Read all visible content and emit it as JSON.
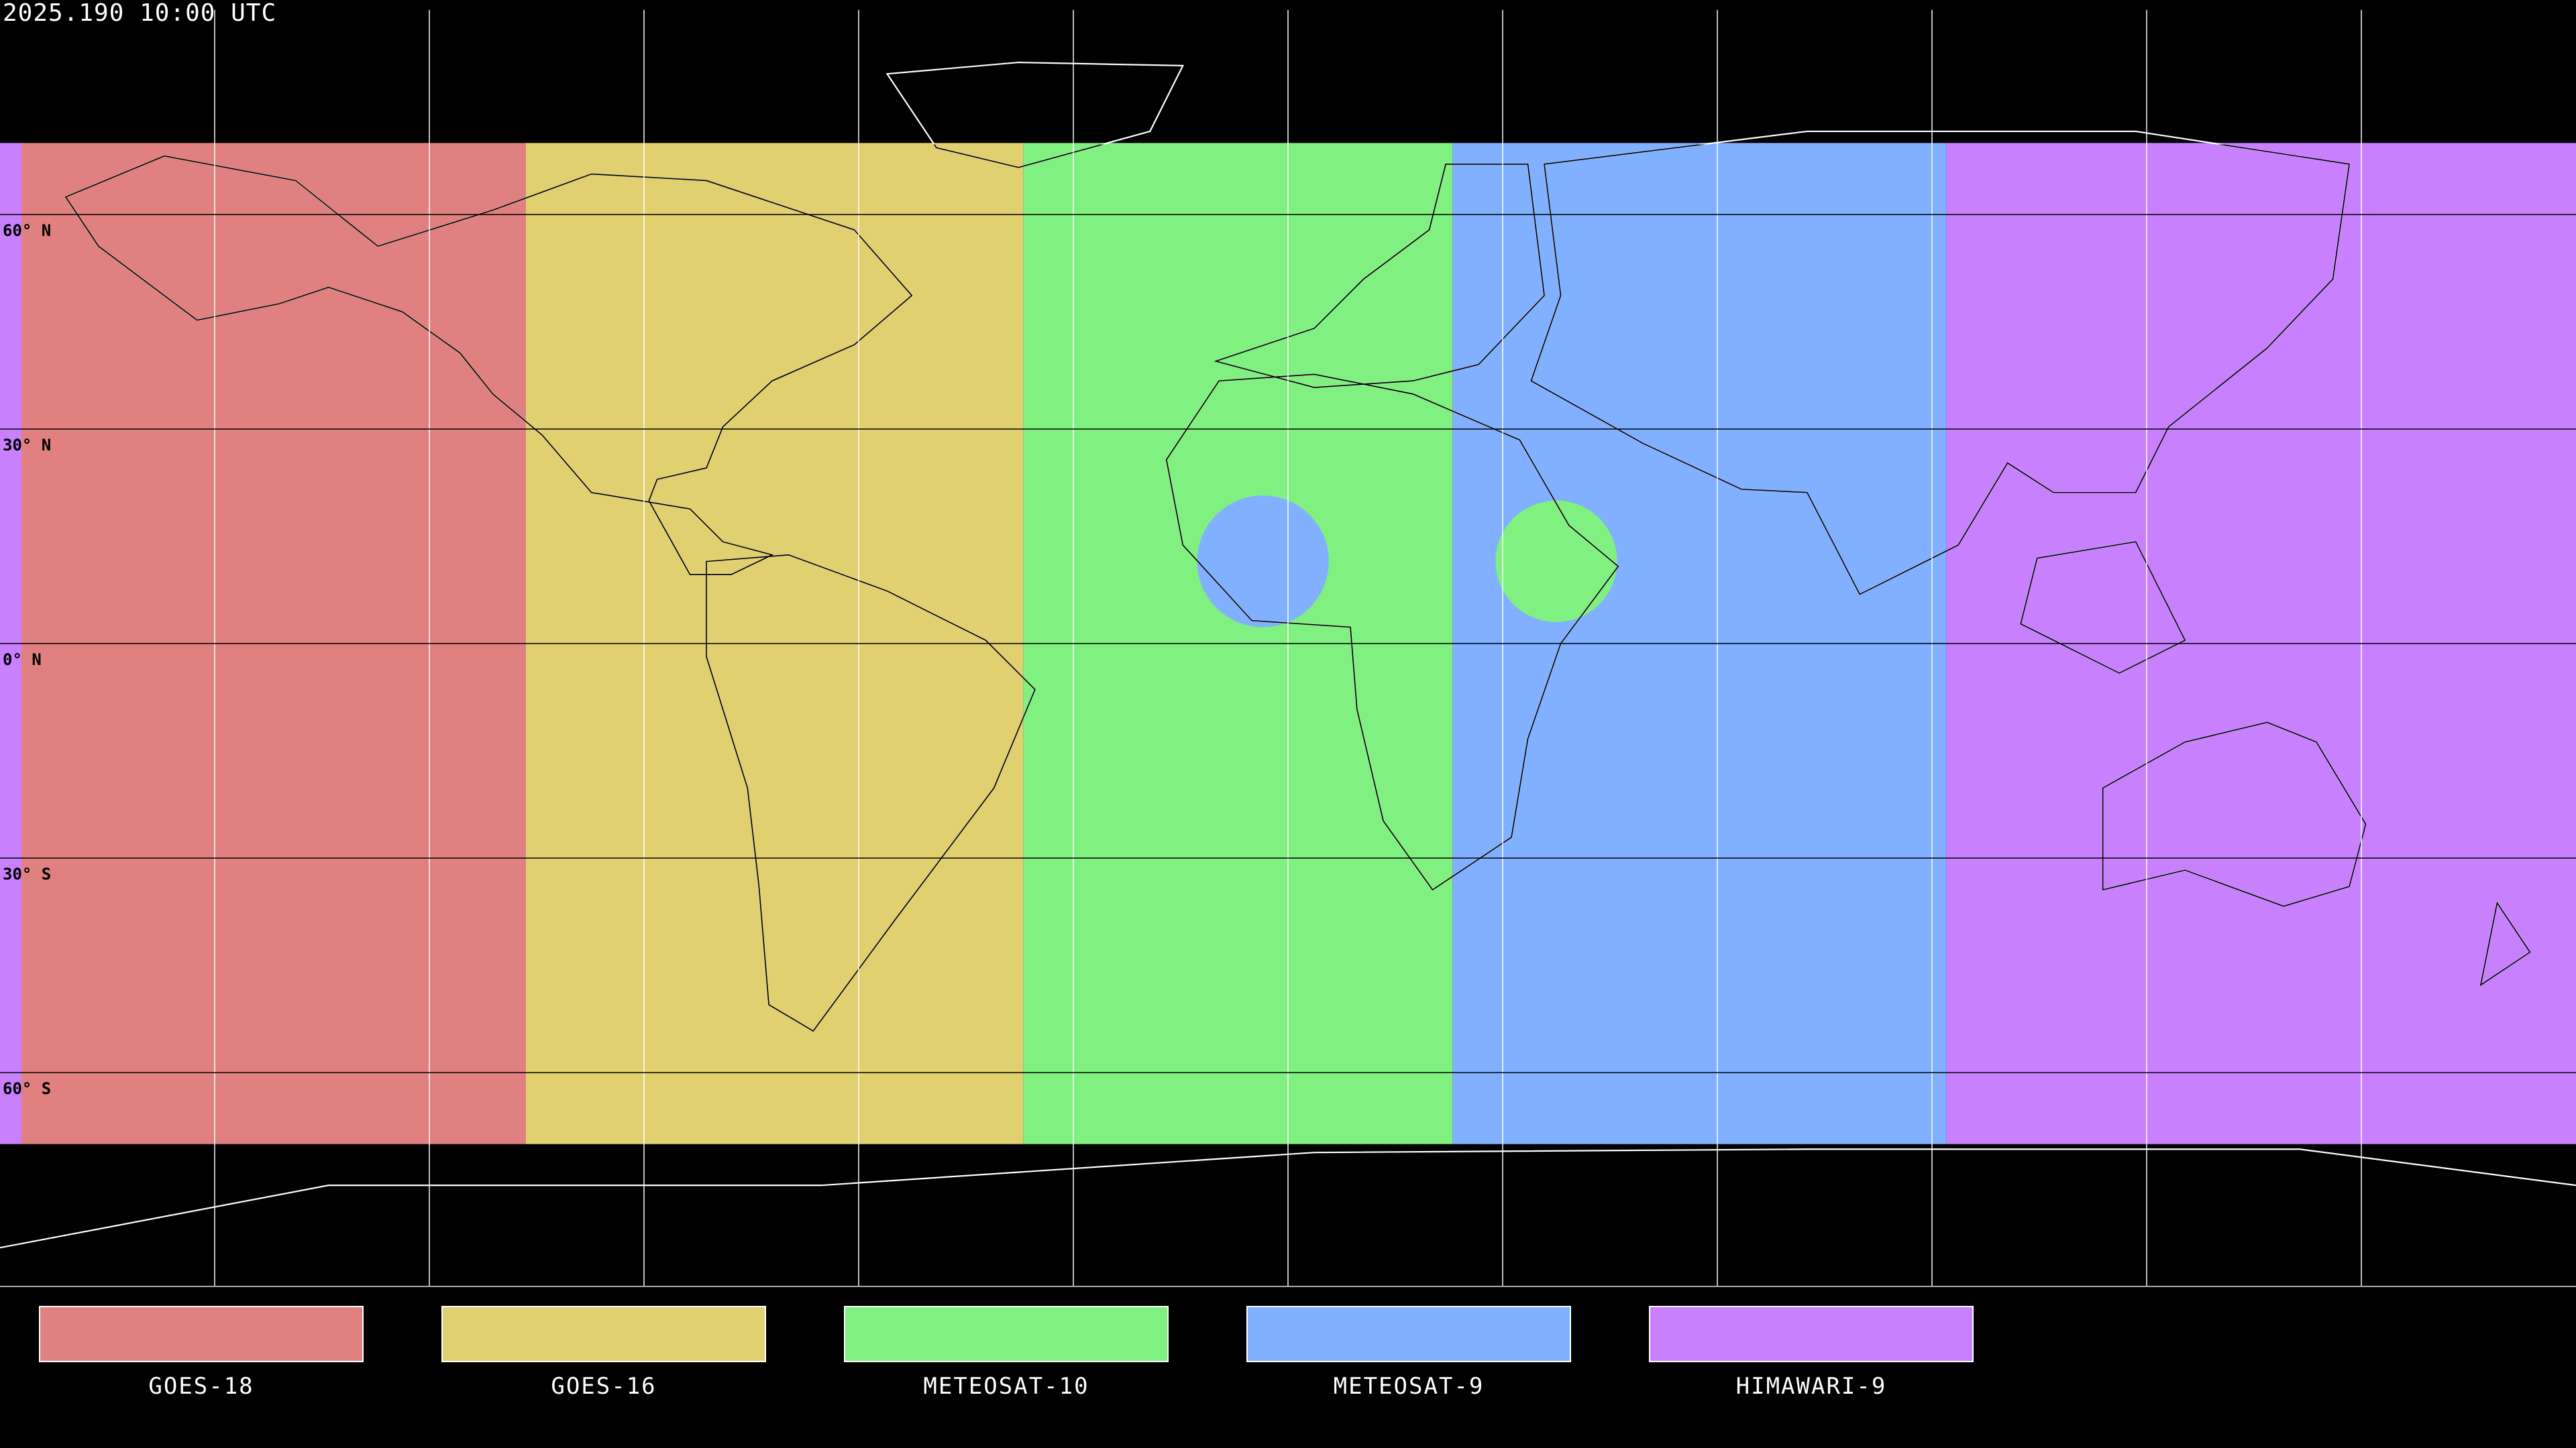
{
  "title": "2025.190 10:00 UTC",
  "map": {
    "projection": "equirectangular",
    "lon_range": [
      -180,
      180
    ],
    "lat_range": [
      -90,
      90
    ],
    "grid_spacing_deg": 30,
    "background": "#000000",
    "coverage_lat": [
      -70,
      70
    ],
    "lat_labels": [
      {
        "lat": 60,
        "text": "60° N"
      },
      {
        "lat": 30,
        "text": "30° N"
      },
      {
        "lat": 0,
        "text": "0° N"
      },
      {
        "lat": -30,
        "text": "30° S"
      },
      {
        "lat": -60,
        "text": "60° S"
      }
    ]
  },
  "satellites": [
    {
      "name": "GOES-18",
      "color": "#e08080",
      "coverage_lon": [
        [
          -177,
          -106.5
        ]
      ]
    },
    {
      "name": "GOES-16",
      "color": "#e0d070",
      "coverage_lon": [
        [
          -106.5,
          -37
        ]
      ]
    },
    {
      "name": "METEOSAT-10",
      "color": "#80f080",
      "coverage_lon": [
        [
          -37,
          23
        ]
      ]
    },
    {
      "name": "METEOSAT-9",
      "color": "#80b0ff",
      "coverage_lon": [
        [
          23,
          92
        ]
      ]
    },
    {
      "name": "HIMAWARI-9",
      "color": "#c880ff",
      "coverage_lon": [
        [
          92,
          180
        ],
        [
          -180,
          -177
        ]
      ]
    }
  ],
  "gap_patches": [
    {
      "satellite": "METEOSAT-9",
      "center": [
        -3.5,
        11.5
      ],
      "radius_deg": 9.2
    },
    {
      "satellite": "METEOSAT-10",
      "center": [
        37.5,
        11.5
      ],
      "radius_deg": 8.5
    }
  ]
}
